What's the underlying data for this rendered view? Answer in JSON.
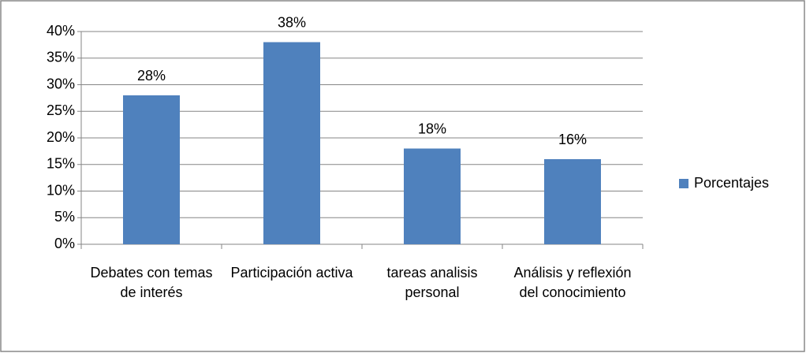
{
  "chart_data": {
    "type": "bar",
    "categories": [
      "Debates con temas de interés",
      "Participación activa",
      "tareas analisis personal",
      "Análisis y reflexión del conocimiento"
    ],
    "series": [
      {
        "name": "Porcentajes",
        "color": "#4f81bd",
        "values": [
          28,
          38,
          18,
          16
        ],
        "value_labels": [
          "28%",
          "38%",
          "18%",
          "16%"
        ]
      }
    ],
    "ylim": [
      0,
      40
    ],
    "yticks": [
      {
        "value": 0,
        "label": "0%"
      },
      {
        "value": 5,
        "label": "5%"
      },
      {
        "value": 10,
        "label": "10%"
      },
      {
        "value": 15,
        "label": "15%"
      },
      {
        "value": 20,
        "label": "20%"
      },
      {
        "value": 25,
        "label": "25%"
      },
      {
        "value": 30,
        "label": "30%"
      },
      {
        "value": 35,
        "label": "35%"
      },
      {
        "value": 40,
        "label": "40%"
      }
    ],
    "grid": true,
    "legend": "right"
  }
}
